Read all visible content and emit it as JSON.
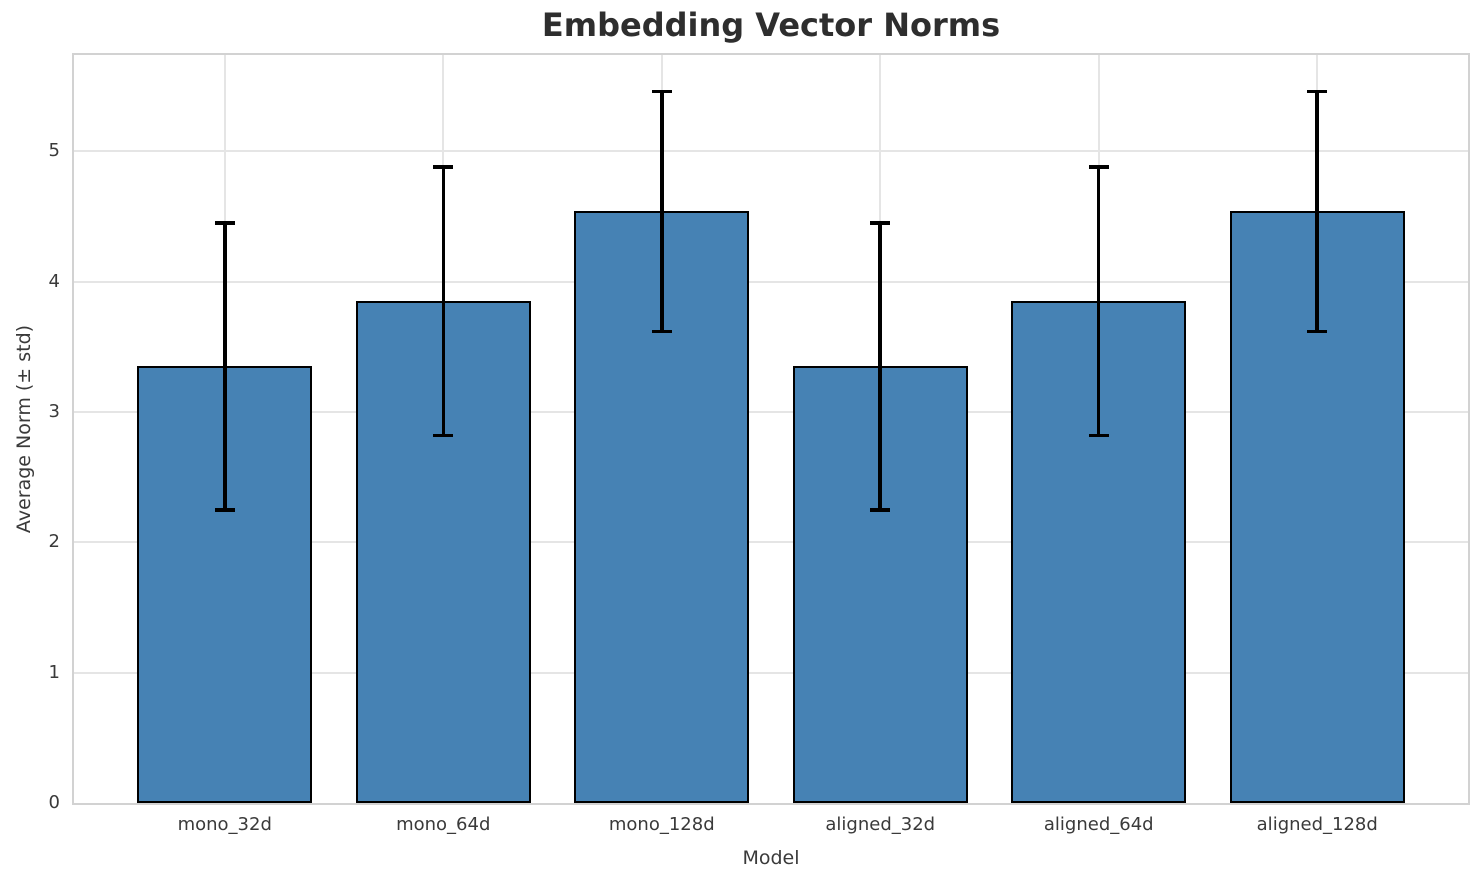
{
  "chart_data": {
    "type": "bar",
    "title": "Embedding Vector Norms",
    "xlabel": "Model",
    "ylabel": "Average Norm (± std)",
    "categories": [
      "mono_32d",
      "mono_64d",
      "mono_128d",
      "aligned_32d",
      "aligned_64d",
      "aligned_128d"
    ],
    "values": [
      3.35,
      3.85,
      4.54,
      3.35,
      3.85,
      4.54
    ],
    "errors": [
      1.1,
      1.03,
      0.92,
      1.1,
      1.03,
      0.92
    ],
    "error_type": "symmetric std",
    "yticks": [
      0,
      1,
      2,
      3,
      4,
      5
    ],
    "ylim": [
      0,
      5.74
    ],
    "xlim": [
      -0.69,
      5.69
    ],
    "bar_width_units": 0.8,
    "grid": "both",
    "legend": "none",
    "colors": {
      "bar_fill": "#4682B4",
      "bar_edge": "#000000",
      "error_bar": "#000000",
      "gridline": "#e5e5e5",
      "spine": "#d2d2d2",
      "title_text": "#2e2e2e",
      "tick_text": "#3a3a3a",
      "background": "#ffffff"
    }
  }
}
